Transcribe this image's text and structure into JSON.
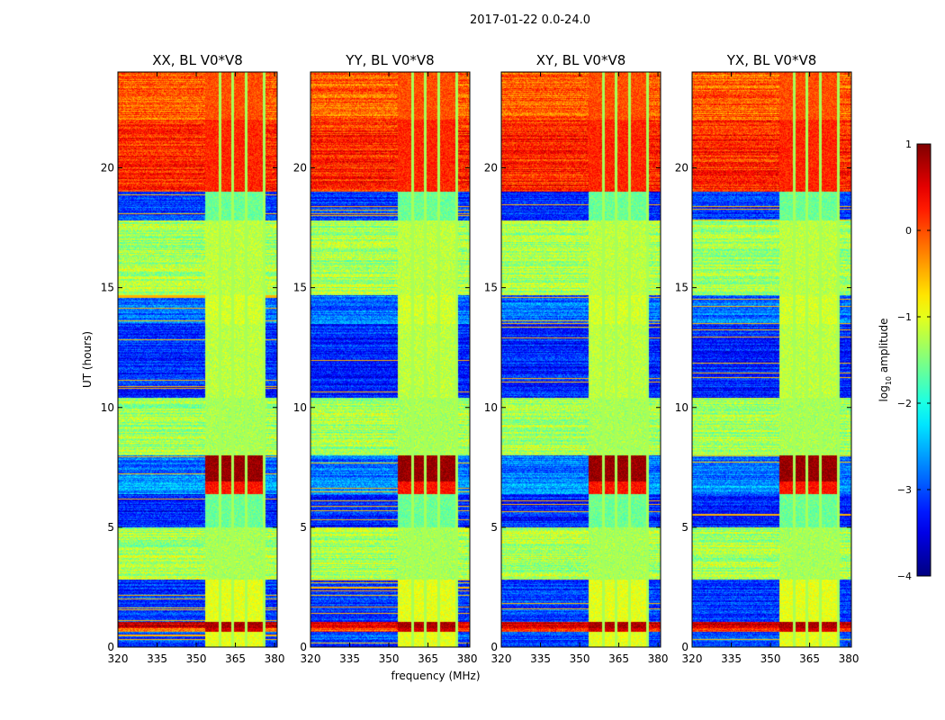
{
  "figure": {
    "suptitle": "2017-01-22 0.0-24.0"
  },
  "chart_data": {
    "type": "heatmap",
    "suptitle": "2017-01-22 0.0-24.0",
    "xlabel": "frequency (MHz)",
    "ylabel": "UT (hours)",
    "xlim": [
      320,
      381
    ],
    "ylim": [
      0,
      24
    ],
    "xticks": [
      320,
      335,
      350,
      365,
      380
    ],
    "yticks": [
      0,
      5,
      10,
      15,
      20
    ],
    "colorbar": {
      "label_prefix": "log",
      "label_sub": "10",
      "label_suffix": " amplitude",
      "range": [
        -4,
        1
      ],
      "ticks": [
        1,
        0,
        -1,
        -2,
        -3,
        -4
      ],
      "tick_labels": [
        "1",
        "0",
        "−1",
        "−2",
        "−3",
        "−4"
      ],
      "colormap": "jet"
    },
    "panels": [
      {
        "title": "XX, BL V0*V8",
        "show_ylabel": true,
        "show_xlabel": false
      },
      {
        "title": "YY, BL V0*V8",
        "show_ylabel": false,
        "show_xlabel": true
      },
      {
        "title": "XY, BL V0*V8",
        "show_ylabel": false,
        "show_xlabel": false
      },
      {
        "title": "YX, BL V0*V8",
        "show_ylabel": false,
        "show_xlabel": false
      }
    ],
    "flagged_value": -1.3,
    "time_bands": [
      {
        "start": 0.0,
        "end": 0.65,
        "level": -3.0,
        "rfi": -1.0
      },
      {
        "start": 0.65,
        "end": 0.8,
        "level": 0.0,
        "rfi": 0.6
      },
      {
        "start": 0.8,
        "end": 1.05,
        "level": 0.6,
        "rfi": 0.8
      },
      {
        "start": 1.05,
        "end": 2.8,
        "level": -3.1,
        "rfi": -1.0
      },
      {
        "start": 2.8,
        "end": 3.2,
        "level": -1.3,
        "rfi": -1.3
      },
      {
        "start": 3.2,
        "end": 5.0,
        "level": -1.3,
        "rfi": -1.3
      },
      {
        "start": 5.0,
        "end": 6.4,
        "level": -3.2,
        "rfi": -1.6
      },
      {
        "start": 6.4,
        "end": 6.9,
        "level": -2.6,
        "rfi": 0.3
      },
      {
        "start": 6.9,
        "end": 8.0,
        "level": -2.8,
        "rfi": 0.9
      },
      {
        "start": 8.0,
        "end": 8.6,
        "level": -1.3,
        "rfi": -1.3
      },
      {
        "start": 8.6,
        "end": 10.4,
        "level": -1.3,
        "rfi": -1.3
      },
      {
        "start": 10.4,
        "end": 13.5,
        "level": -3.2,
        "rfi": -1.2
      },
      {
        "start": 13.5,
        "end": 14.7,
        "level": -2.8,
        "rfi": -1.1
      },
      {
        "start": 14.7,
        "end": 17.8,
        "level": -1.3,
        "rfi": -1.2
      },
      {
        "start": 17.8,
        "end": 19.0,
        "level": -3.1,
        "rfi": -1.6
      },
      {
        "start": 19.0,
        "end": 22.0,
        "level": 0.2,
        "rfi": 0.2
      },
      {
        "start": 22.0,
        "end": 24.0,
        "level": -0.1,
        "rfi": 0.0
      }
    ],
    "rfi_channels_mhz": [
      [
        353.5,
        358.5
      ],
      [
        359.5,
        363.5
      ],
      [
        364.5,
        368.5
      ],
      [
        369.5,
        375.5
      ]
    ]
  }
}
